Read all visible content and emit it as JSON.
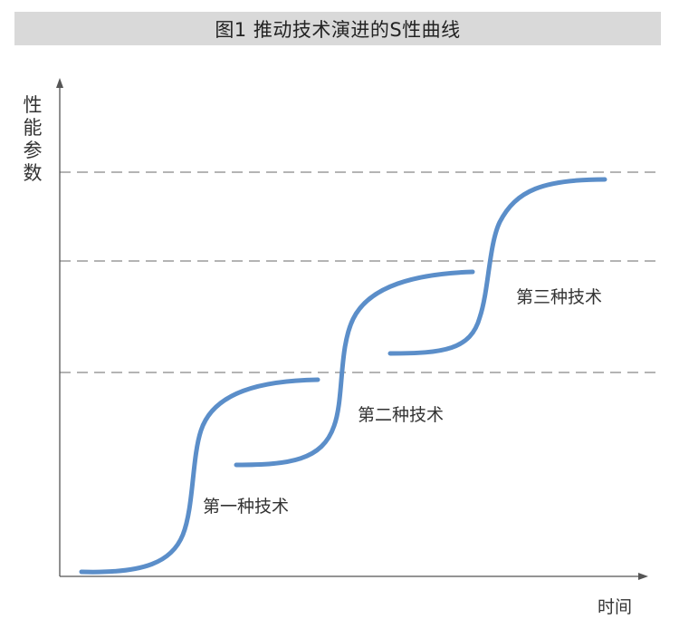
{
  "title": "图1  推动技术演进的S性曲线",
  "y_axis_label": "性能参数",
  "x_axis_label": "时间",
  "curves": [
    {
      "label": "第一种技术"
    },
    {
      "label": "第二种技术"
    },
    {
      "label": "第三种技术"
    }
  ],
  "colors": {
    "curve": "#5b8ec9",
    "axis": "#555555",
    "dashed_line": "#888888",
    "title_background": "#d9d9d9"
  }
}
